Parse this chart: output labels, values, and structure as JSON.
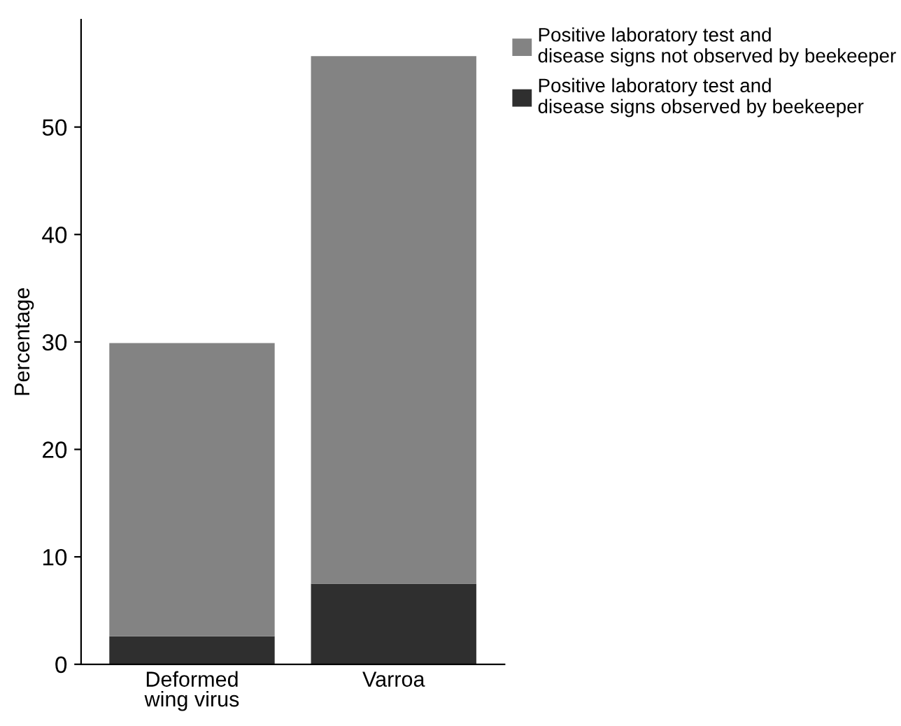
{
  "chart_data": {
    "type": "bar",
    "stacked": true,
    "ylabel": "Percentage",
    "categories": [
      "Deformed\nwing virus",
      "Varroa"
    ],
    "series": [
      {
        "name": "Positive laboratory test and\ndisease signs observed by beekeeper",
        "color": "#2f2f2f",
        "values": [
          2.6,
          7.5
        ]
      },
      {
        "name": "Positive laboratory test and\ndisease signs not observed by beekeeper",
        "color": "#838383",
        "values": [
          27.3,
          49.1
        ]
      }
    ],
    "ylim": [
      0,
      60
    ],
    "yticks": [
      0,
      10,
      20,
      30,
      40,
      50
    ],
    "grid": false,
    "legend": "top right"
  }
}
